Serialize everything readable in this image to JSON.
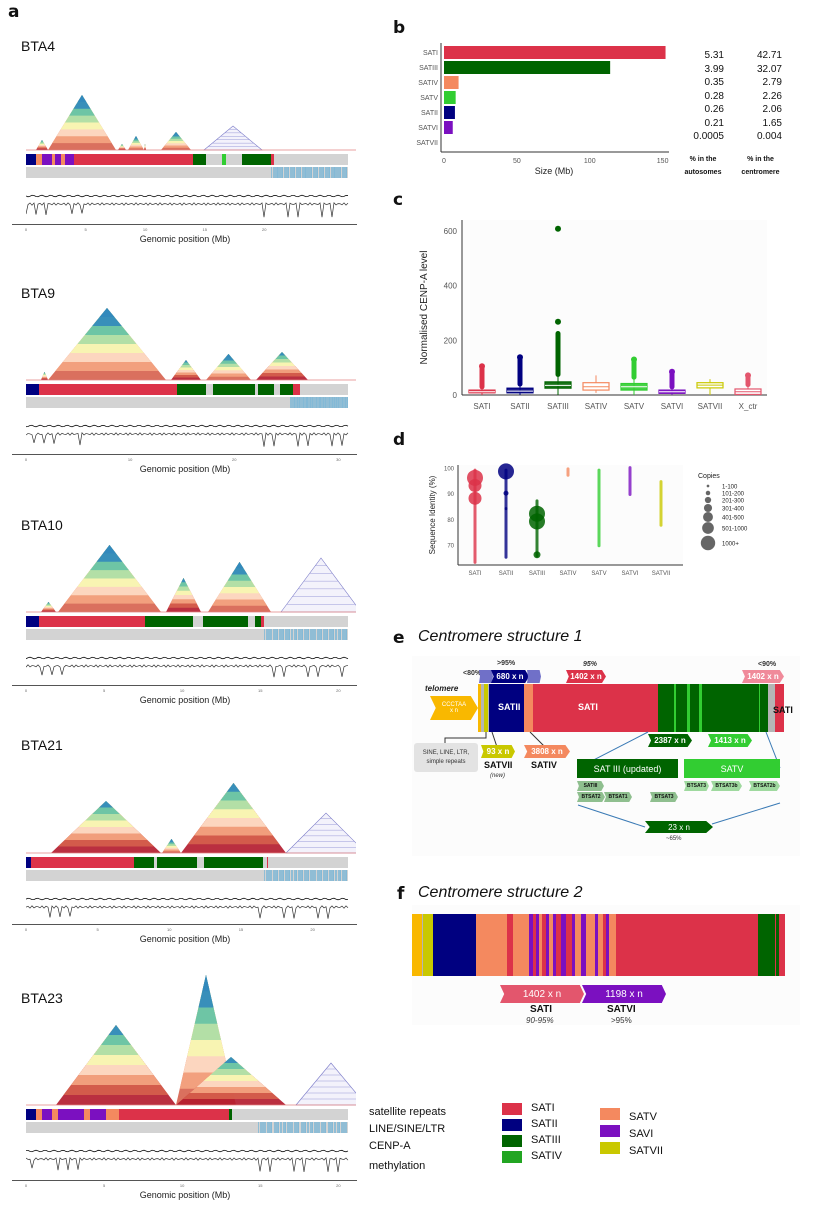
{
  "colors": {
    "SATI": "#dc3249",
    "SATII": "#000080",
    "SATIII": "#006400",
    "SATIV": "#f4895f",
    "SATV": "#32cd32",
    "SATVI": "#7b10c0",
    "SATVII": "#c9c800",
    "telomere": "#f9b800",
    "grey": "#d3d3d3",
    "line_sine": "#a9cde0"
  },
  "panel_a": {
    "letter": "a",
    "xlabel": "Genomic position (Mb)",
    "chromosomes": [
      {
        "name": "BTA4",
        "ticks": [
          "0",
          "5",
          "10",
          "15",
          "20"
        ]
      },
      {
        "name": "BTA9",
        "ticks": [
          "0",
          "10",
          "20",
          "30"
        ]
      },
      {
        "name": "BTA10",
        "ticks": [
          "0",
          "5",
          "10",
          "15",
          "20"
        ]
      },
      {
        "name": "BTA21",
        "ticks": [
          "0",
          "5",
          "10",
          "15",
          "20"
        ]
      },
      {
        "name": "BTA23",
        "ticks": [
          "0",
          "5",
          "10",
          "15",
          "20"
        ]
      }
    ],
    "track_labels": [
      "satellite repeats",
      "LINE/SINE/LTR",
      "CENP-A",
      "methylation"
    ]
  },
  "panel_b": {
    "letter": "b",
    "col1_header": "% in the autosomes",
    "col2_header": "% in the centromere"
  },
  "panel_c": {
    "letter": "c"
  },
  "panel_d": {
    "letter": "d",
    "legend_title": "Copies",
    "legend_items": [
      "1-100",
      "101-200",
      "201-300",
      "301-400",
      "401-500",
      "501-1000",
      "1000+"
    ]
  },
  "chart_data": [
    {
      "id": "b",
      "type": "bar",
      "orientation": "horizontal",
      "categories": [
        "SATI",
        "SATIII",
        "SATIV",
        "SATV",
        "SATII",
        "SATVI",
        "SATVII"
      ],
      "values": [
        152,
        114,
        10,
        8,
        7.5,
        6,
        0.01
      ],
      "xlabel": "Size (Mb)",
      "ylabel": "",
      "xlim": [
        0,
        160
      ],
      "xticks": [
        "0",
        "50",
        "100",
        "150"
      ],
      "table": {
        "pct_autosomes": [
          "5.31",
          "3.99",
          "0.35",
          "0.28",
          "0.26",
          "0.21",
          "0.0005"
        ],
        "pct_centromere": [
          "42.71",
          "32.07",
          "2.79",
          "2.26",
          "2.06",
          "1.65",
          "0.004"
        ]
      }
    },
    {
      "id": "c",
      "type": "box",
      "categories": [
        "SATI",
        "SATII",
        "SATIII",
        "SATIV",
        "SATV",
        "SATVI",
        "SATVII",
        "X_ctr"
      ],
      "ylabel": "Normalised CENP-A level",
      "ylim": [
        0,
        640
      ],
      "yticks": [
        "0",
        "200",
        "400",
        "600"
      ],
      "series": [
        {
          "name": "SATI",
          "q1": 8,
          "median": 12,
          "q3": 18,
          "whisker_low": 0,
          "whisker_high": 30,
          "outlier_max": 105
        },
        {
          "name": "SATII",
          "q1": 8,
          "median": 14,
          "q3": 25,
          "whisker_low": 0,
          "whisker_high": 40,
          "outlier_max": 138
        },
        {
          "name": "SATIII",
          "q1": 25,
          "median": 35,
          "q3": 48,
          "whisker_low": 0,
          "whisker_high": 75,
          "outlier_max": 608
        },
        {
          "name": "SATIV",
          "q1": 18,
          "median": 30,
          "q3": 45,
          "whisker_low": 8,
          "whisker_high": 72,
          "outlier_max": null
        },
        {
          "name": "SATV",
          "q1": 18,
          "median": 30,
          "q3": 42,
          "whisker_low": 0,
          "whisker_high": 65,
          "outlier_max": 130
        },
        {
          "name": "SATVI",
          "q1": 6,
          "median": 12,
          "q3": 18,
          "whisker_low": 0,
          "whisker_high": 30,
          "outlier_max": 85
        },
        {
          "name": "SATVII",
          "q1": 26,
          "median": 36,
          "q3": 45,
          "whisker_low": 0,
          "whisker_high": 58,
          "outlier_max": null
        },
        {
          "name": "X_ctr",
          "q1": 2,
          "median": 12,
          "q3": 22,
          "whisker_low": 0,
          "whisker_high": 38,
          "outlier_max": 72
        }
      ]
    },
    {
      "id": "d",
      "type": "scatter",
      "categories": [
        "SATI",
        "SATII",
        "SATIII",
        "SATIV",
        "SATV",
        "SATVI",
        "SATVII"
      ],
      "ylabel": "Sequence Identity (%)",
      "ylim": [
        62,
        101
      ],
      "yticks": [
        "70",
        "80",
        "90",
        "100"
      ],
      "series": [
        {
          "name": "SATI",
          "range": [
            63,
            99
          ],
          "big": [
            {
              "y": 96,
              "size": "1000+"
            },
            {
              "y": 93,
              "size": "501-1000"
            },
            {
              "y": 88,
              "size": "501-1000"
            }
          ]
        },
        {
          "name": "SATII",
          "range": [
            65,
            99
          ],
          "big": [
            {
              "y": 98.5,
              "size": "1000+"
            },
            {
              "y": 90,
              "size": "101-200"
            },
            {
              "y": 84,
              "size": "1-100"
            }
          ]
        },
        {
          "name": "SATIII",
          "range": [
            65.5,
            87
          ],
          "big": [
            {
              "y": 82,
              "size": "1000+"
            },
            {
              "y": 79,
              "size": "1000+"
            },
            {
              "y": 66,
              "size": "201-300"
            }
          ]
        },
        {
          "name": "SATIV",
          "range": [
            97,
            99.5
          ],
          "big": []
        },
        {
          "name": "SATV",
          "range": [
            69.5,
            99
          ],
          "big": []
        },
        {
          "name": "SATVI",
          "range": [
            89.5,
            100
          ],
          "big": []
        },
        {
          "name": "SATVII",
          "range": [
            77.5,
            94.5
          ],
          "big": []
        }
      ]
    }
  ],
  "panel_e": {
    "letter": "e",
    "title": "Centromere structure 1",
    "telomere_label": "telomere",
    "telomere_seq": "CCCTAA",
    "telomere_n": "x n",
    "pct_left": "<80%",
    "pct_satii": ">95%",
    "pct_sati": "95%",
    "pct_right": "<90%",
    "satii_label": "SATII",
    "sati_label": "SATI",
    "sati_right_label": "SATI",
    "chev_satii": "680 x n",
    "chev_sati": "1402 x n",
    "chev_sati_right": "1402 x n",
    "chev_satiii": "2387 x n",
    "chev_satv": "1413 x n",
    "repeats_box": "SINE, LINE, LTR, simple repeats",
    "chev_satvii": "93 x n",
    "satvii_label": "SATVII",
    "satvii_note": "(new)",
    "chev_sativ": "3808 x n",
    "sativ_label": "SATIV",
    "satiii_box": "SAT III (updated)",
    "satv_box": "SATV",
    "sub_satiii": [
      "SATIII",
      "BTSAT2",
      "BTSAT1",
      "BTSAT3"
    ],
    "sub_satv": [
      "BTSAT3",
      "BTSAT3b",
      "BTSAT2b"
    ],
    "chev_bottom": "23 x n",
    "pct_bottom": "~65%"
  },
  "panel_f": {
    "letter": "f",
    "title": "Centromere structure 2",
    "chev_sati": "1402 x n",
    "chev_satvi": "1198 x n",
    "sati_label": "SATI",
    "sati_pct": "90-95%",
    "satvi_label": "SATVI",
    "satvi_pct": ">95%"
  },
  "legend": {
    "items_col1": [
      "SATI",
      "SATII",
      "SATIII",
      "SATIV"
    ],
    "items_col2": [
      "SATV",
      "SAVI",
      "SATVII"
    ],
    "colors_col1": [
      "#dc3249",
      "#000080",
      "#006400",
      "#22a522"
    ],
    "colors_col2": [
      "#f4895f",
      "#7b10c0",
      "#c9c800"
    ]
  }
}
